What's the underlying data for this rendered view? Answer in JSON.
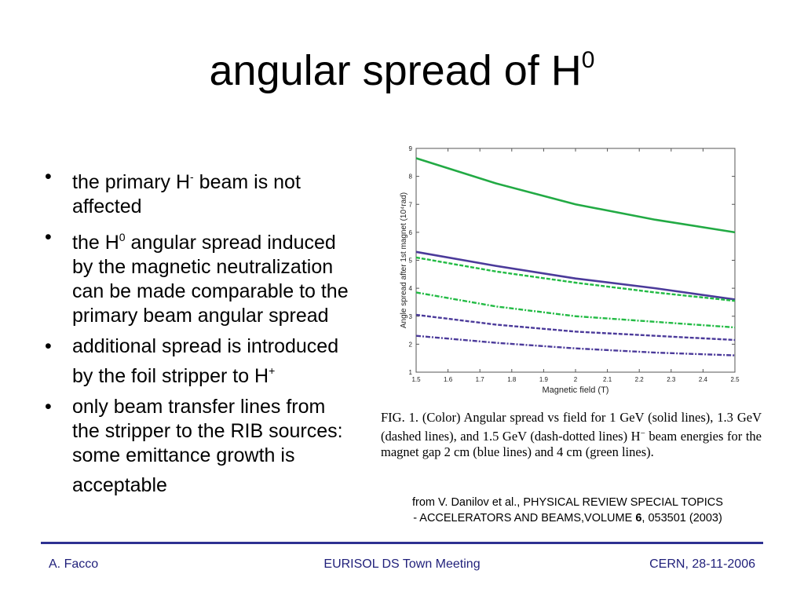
{
  "slide": {
    "title_text": "angular spread of H",
    "title_sup": "0"
  },
  "bullets": [
    {
      "a": "the primary H",
      "sup": "-",
      "b": " beam is not affected"
    },
    {
      "a": "the H",
      "sup": "0",
      "b": " angular spread induced by the magnetic neutralization can be made comparable to the primary beam angular spread"
    },
    {
      "a": "additional spread is introduced by the foil stripper to H",
      "sup": "+",
      "b": ""
    },
    {
      "a": "only beam transfer lines from the stripper to the RIB sources: some emittance growth is acceptable",
      "sup": "",
      "b": ""
    }
  ],
  "figure": {
    "caption_a": "FIG. 1. (Color) Angular spread vs field for 1 GeV (solid lines), 1.3 GeV (dashed lines), and 1.5 GeV (dash-dotted lines) H",
    "caption_sup": "−",
    "caption_b": " beam energies for the magnet gap 2 cm (blue lines) and 4 cm (green lines)."
  },
  "source": {
    "line1": "from V. Danilov et al., PHYSICAL REVIEW SPECIAL TOPICS",
    "line2_a": "- ACCELERATORS AND BEAMS,VOLUME ",
    "line2_bold": "6",
    "line2_b": ", 053501 (2003)"
  },
  "footer": {
    "left": "A. Facco",
    "center": "EURISOL DS Town Meeting",
    "right": "CERN, 28-11-2006"
  },
  "chart_data": {
    "type": "line",
    "xlabel": "Magnetic field (T)",
    "ylabel": "Angle spread after 1st magnet (10⁴rad)",
    "xlim": [
      1.5,
      2.5
    ],
    "ylim": [
      1,
      9
    ],
    "xticks": [
      "1.5",
      "1.6",
      "1.7",
      "1.8",
      "1.9",
      "2",
      "2.1",
      "2.2",
      "2.3",
      "2.4",
      "2.5"
    ],
    "yticks": [
      "1",
      "2",
      "3",
      "4",
      "5",
      "6",
      "7",
      "8",
      "9"
    ],
    "x": [
      1.5,
      1.75,
      2.0,
      2.25,
      2.5
    ],
    "series": [
      {
        "values": [
          8.65,
          7.75,
          7.0,
          6.45,
          6.0
        ],
        "color": "#22aa44",
        "style": "solid"
      },
      {
        "values": [
          5.3,
          4.8,
          4.35,
          4.0,
          3.6
        ],
        "color": "#4b3a9a",
        "style": "solid"
      },
      {
        "values": [
          5.1,
          4.6,
          4.2,
          3.85,
          3.55
        ],
        "color": "#22bb44",
        "style": "dashed"
      },
      {
        "values": [
          3.85,
          3.35,
          3.0,
          2.8,
          2.6
        ],
        "color": "#22bb44",
        "style": "dashdot"
      },
      {
        "values": [
          3.05,
          2.7,
          2.45,
          2.3,
          2.15
        ],
        "color": "#4b3a9a",
        "style": "dashed"
      },
      {
        "values": [
          2.3,
          2.05,
          1.85,
          1.7,
          1.6
        ],
        "color": "#4b3a9a",
        "style": "dashdot"
      }
    ]
  }
}
